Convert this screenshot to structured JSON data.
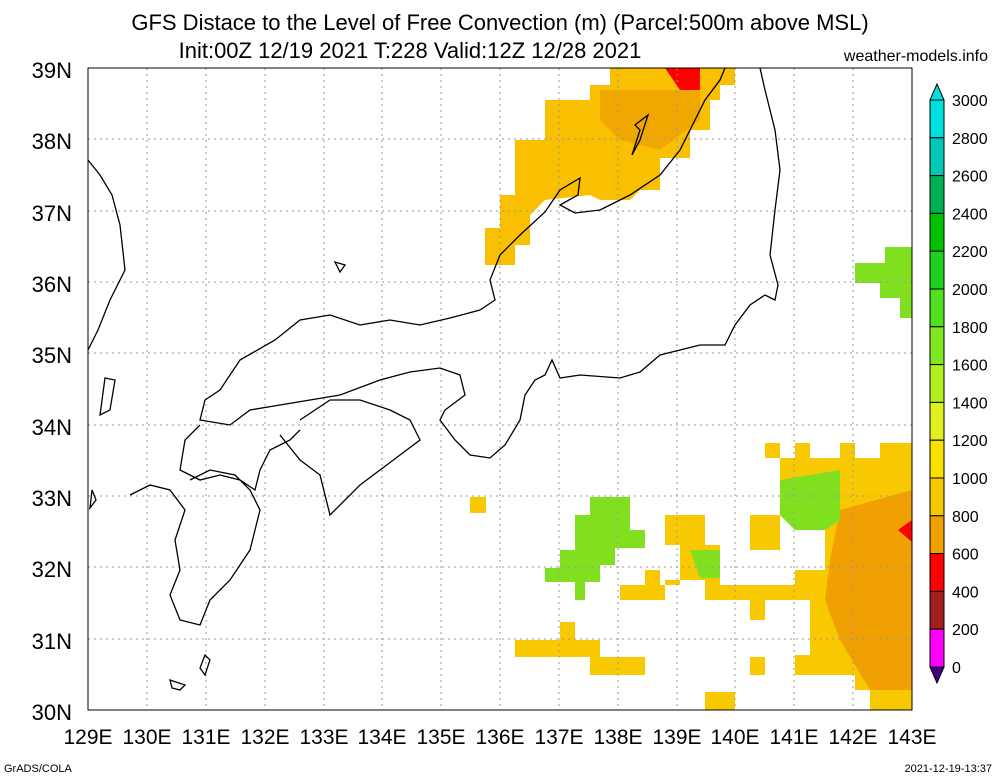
{
  "title_line1": "GFS Distace to the Level of Free Convection (m) (Parcel:500m above MSL)",
  "title_line2": "Init:00Z 12/19 2021 T:228 Valid:12Z 12/28 2021",
  "site": "weather-models.info",
  "footer_left": "GrADS/COLA",
  "footer_right": "2021-12-19-13:37",
  "lat_labels": [
    "39N",
    "38N",
    "37N",
    "36N",
    "35N",
    "34N",
    "33N",
    "32N",
    "31N",
    "30N"
  ],
  "lon_labels": [
    "129E",
    "130E",
    "131E",
    "132E",
    "133E",
    "134E",
    "135E",
    "136E",
    "137E",
    "138E",
    "139E",
    "140E",
    "141E",
    "142E",
    "143E"
  ],
  "colorbar": {
    "labels": [
      "3000",
      "2800",
      "2600",
      "2400",
      "2200",
      "2000",
      "1800",
      "1600",
      "1400",
      "1200",
      "1000",
      "800",
      "600",
      "400",
      "200",
      "0"
    ],
    "colors": [
      "#00e0e0",
      "#00c8b4",
      "#00b050",
      "#00c000",
      "#20d020",
      "#50e020",
      "#80e820",
      "#b0f020",
      "#e0f020",
      "#f8e000",
      "#f8c800",
      "#f0a000",
      "#ff0000",
      "#a02020",
      "#ff00ff",
      "#400080"
    ]
  },
  "colors": {
    "orange": "#f0a000",
    "light_orange": "#f8c000",
    "yellow": "#f0e000",
    "green": "#80e020",
    "red": "#ff0000"
  }
}
